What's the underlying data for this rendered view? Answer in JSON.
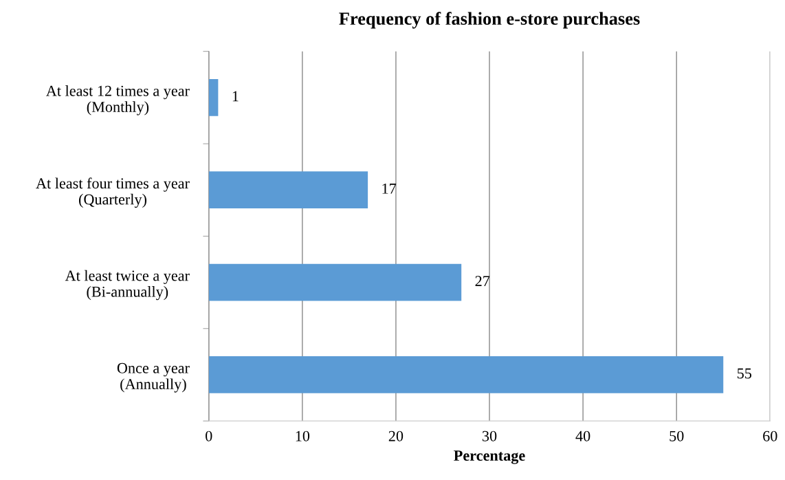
{
  "chart_data": {
    "type": "bar",
    "orientation": "horizontal",
    "title": "Frequency of fashion e-store purchases",
    "xlabel": "Percentage",
    "categories": [
      "At least 12 times a year\n(Monthly)",
      "At least four times a year\n(Quarterly)",
      "At least twice a year\n(Bi-annually)",
      "Once a year\n(Annually)"
    ],
    "values": [
      1,
      17,
      27,
      55
    ],
    "color": "#5b9bd5",
    "xlim": [
      0,
      60
    ],
    "xticks": [
      0,
      10,
      20,
      30,
      40,
      50,
      60
    ],
    "grid": "x",
    "data_labels": true,
    "legend": false
  }
}
